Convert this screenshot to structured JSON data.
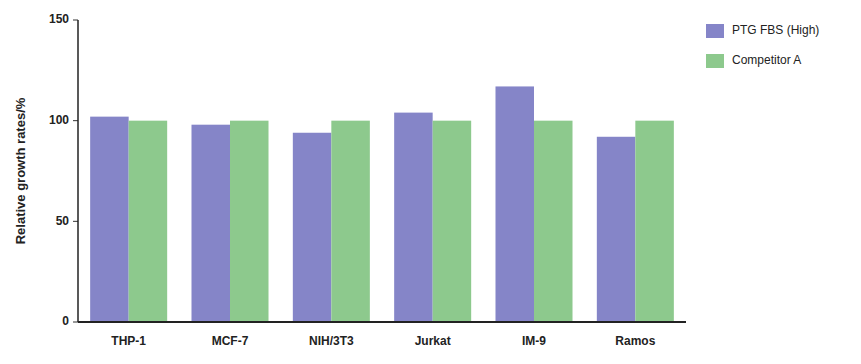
{
  "chart_data": {
    "type": "bar",
    "categories": [
      "THP-1",
      "MCF-7",
      "NIH/3T3",
      "Jurkat",
      "IM-9",
      "Ramos"
    ],
    "series": [
      {
        "name": "PTG FBS (High)",
        "color": "#8585C8",
        "values": [
          102,
          98,
          94,
          104,
          117,
          92
        ]
      },
      {
        "name": "Competitor A",
        "color": "#8DC98D",
        "values": [
          100,
          100,
          100,
          100,
          100,
          100
        ]
      }
    ],
    "y_label": "Relative growth rates/%",
    "ylim": [
      0,
      150
    ],
    "yticks": [
      0,
      50,
      100,
      150
    ],
    "grid": false,
    "legend": "right"
  }
}
